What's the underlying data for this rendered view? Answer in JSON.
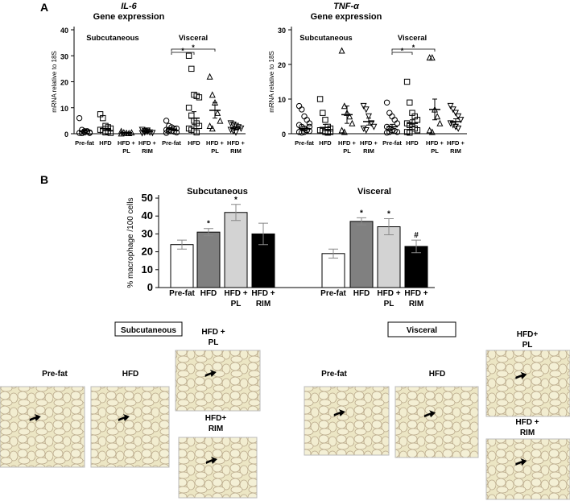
{
  "panels": [
    "A",
    "B"
  ],
  "chart_data": [
    {
      "type": "dotplot",
      "title": "IL-6",
      "subtitle": "Gene expression",
      "ylabel": "mRNA relative to 18S",
      "group_labels": [
        "Subcutaneous",
        "Visceral"
      ],
      "categories": [
        "Pre-fat",
        "HFD",
        "HFD + PL",
        "HFD + RIM",
        "Pre-fat",
        "HFD",
        "HFD + PL",
        "HFD + RIM"
      ],
      "markers": [
        "circle",
        "square",
        "triangle",
        "triangle-down",
        "circle",
        "square",
        "triangle",
        "triangle-down"
      ],
      "points": [
        [
          6,
          1.5,
          1,
          0.8,
          0.5,
          0.3,
          0.2,
          0.5,
          1,
          0.3
        ],
        [
          7.5,
          6,
          3,
          2.5,
          2,
          1.5,
          1,
          0.5,
          0.8,
          0.3
        ],
        [
          1,
          0.5,
          0.3,
          0.2,
          0.5,
          0.1
        ],
        [
          1.5,
          1,
          0.8,
          0.5,
          0.3,
          0.2,
          0.5,
          1.2
        ],
        [
          5,
          3,
          2.5,
          2,
          2,
          1.5,
          1,
          1,
          0.8,
          0.5,
          0.3,
          1.5
        ],
        [
          30,
          25,
          15,
          14.5,
          14,
          10,
          7,
          5,
          4,
          3,
          2,
          1.5,
          1,
          0.5
        ],
        [
          22,
          15,
          12,
          8,
          5,
          3,
          2
        ],
        [
          4,
          3.5,
          3,
          2.5,
          2,
          1.5,
          1,
          0.5
        ]
      ],
      "means": [
        1,
        2,
        0.4,
        0.7,
        1.8,
        6,
        9,
        2.2
      ],
      "sems": [
        0.5,
        0.8,
        0.1,
        0.2,
        0.4,
        2.5,
        3,
        0.5
      ],
      "significance": [
        "*",
        "*"
      ],
      "ylim": [
        0,
        40
      ],
      "yticks": [
        0,
        10,
        20,
        30,
        40
      ]
    },
    {
      "type": "dotplot",
      "title": "TNF-α",
      "subtitle": "Gene expression",
      "ylabel": "mRNA relative to 18S",
      "group_labels": [
        "Subcutaneous",
        "Visceral"
      ],
      "categories": [
        "Pre-fat",
        "HFD",
        "HFD + PL",
        "HFD + RIM",
        "Pre-fat",
        "HFD",
        "HFD + PL",
        "HFD + RIM"
      ],
      "markers": [
        "circle",
        "square",
        "triangle",
        "triangle-down",
        "circle",
        "square",
        "triangle",
        "triangle-down"
      ],
      "points": [
        [
          8,
          7,
          5,
          4,
          3,
          2.5,
          2,
          1.5,
          1,
          0.8,
          0.5,
          0.3,
          0.5,
          1,
          2
        ],
        [
          10,
          6,
          4,
          2,
          1.5,
          1,
          0.8,
          0.5,
          0.3,
          0.5
        ],
        [
          24,
          8,
          6,
          5,
          3,
          1,
          0.5
        ],
        [
          8,
          7,
          5,
          3,
          2,
          1.5,
          1
        ],
        [
          9,
          6,
          5,
          4,
          3,
          2,
          1.5,
          1,
          0.8,
          0.5,
          0.3,
          0.5
        ],
        [
          15,
          9,
          6,
          5,
          4,
          3,
          2.5,
          2,
          1.5,
          1,
          0.5,
          0.3
        ],
        [
          22,
          22,
          7,
          5,
          3,
          1,
          0.5
        ],
        [
          8,
          7,
          6,
          5,
          4,
          3,
          2.5,
          2,
          1.5
        ]
      ],
      "means": [
        1.5,
        1.8,
        5.5,
        3.5,
        2,
        3,
        7,
        3.5
      ],
      "sems": [
        0.6,
        0.9,
        2.5,
        1,
        0.7,
        1,
        3,
        0.8
      ],
      "significance": [
        "*",
        "*"
      ],
      "ylim": [
        0,
        30
      ],
      "yticks": [
        0,
        10,
        20,
        30
      ]
    },
    {
      "type": "bar",
      "ylabel": "% macrophage /100 cells",
      "group_labels": [
        "Subcutaneous",
        "Visceral"
      ],
      "categories": [
        "Pre-fat",
        "HFD",
        "HFD + PL",
        "HFD + RIM",
        "Pre-fat",
        "HFD",
        "HFD + PL",
        "HFD + RIM"
      ],
      "values": [
        24,
        31,
        42,
        30,
        19,
        37,
        34,
        23
      ],
      "errors": [
        2.5,
        2,
        4.5,
        6,
        2.5,
        2,
        4.5,
        3.5
      ],
      "colors": [
        "#ffffff",
        "#808080",
        "#d3d3d3",
        "#000000",
        "#ffffff",
        "#808080",
        "#d3d3d3",
        "#000000"
      ],
      "value_marks": [
        null,
        "*",
        "*",
        null,
        null,
        "*",
        "*",
        "#"
      ],
      "ylim": [
        0,
        50
      ],
      "yticks": [
        0,
        10,
        20,
        30,
        40,
        50
      ]
    }
  ],
  "micrographs": [
    {
      "title": "Subcutaneous",
      "images": [
        "Pre-fat",
        "HFD",
        "HFD + PL",
        "HFD+ RIM"
      ]
    },
    {
      "title": "Visceral",
      "images": [
        "Pre-fat",
        "HFD",
        "HFD+ PL",
        "HFD + RIM"
      ]
    }
  ]
}
